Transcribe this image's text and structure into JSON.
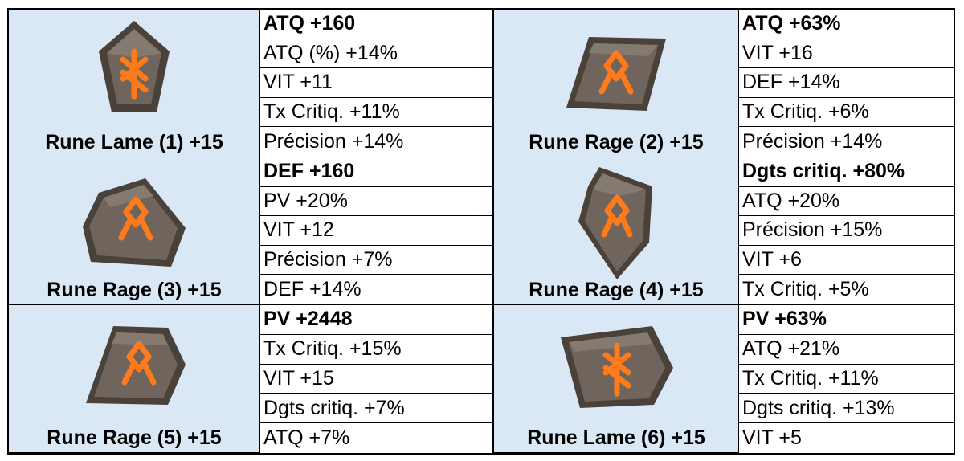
{
  "colors": {
    "label_bg": "#dae8f6",
    "rune_stone": "#6f655c",
    "rune_glyph": "#ff7a1a"
  },
  "runes": [
    {
      "name": "Rune Lame (1) +15",
      "icon": "rune-lame-icon",
      "stats": [
        "ATQ +160",
        "ATQ (%) +14%",
        "VIT +11",
        "Tx Critiq. +11%",
        "Précision +14%"
      ]
    },
    {
      "name": "Rune Rage (2) +15",
      "icon": "rune-rage-icon",
      "stats": [
        "ATQ +63%",
        "VIT +16",
        "DEF +14%",
        "Tx Critiq. +6%",
        "Précision +14%"
      ]
    },
    {
      "name": "Rune Rage (3) +15",
      "icon": "rune-rage-icon",
      "stats": [
        "DEF +160",
        "PV +20%",
        "VIT +12",
        "Précision +7%",
        "DEF +14%"
      ]
    },
    {
      "name": "Rune Rage (4) +15",
      "icon": "rune-rage-icon",
      "stats": [
        "Dgts critiq. +80%",
        "ATQ +20%",
        "Précision +15%",
        "VIT +6",
        "Tx Critiq. +5%"
      ]
    },
    {
      "name": "Rune Rage (5) +15",
      "icon": "rune-rage-icon",
      "stats": [
        "PV +2448",
        "Tx Critiq. +15%",
        "VIT +15",
        "Dgts critiq. +7%",
        "ATQ +7%"
      ]
    },
    {
      "name": "Rune Lame (6) +15",
      "icon": "rune-lame-icon",
      "stats": [
        "PV +63%",
        "ATQ +21%",
        "Tx Critiq. +11%",
        "Dgts critiq. +13%",
        "VIT +5"
      ]
    }
  ]
}
